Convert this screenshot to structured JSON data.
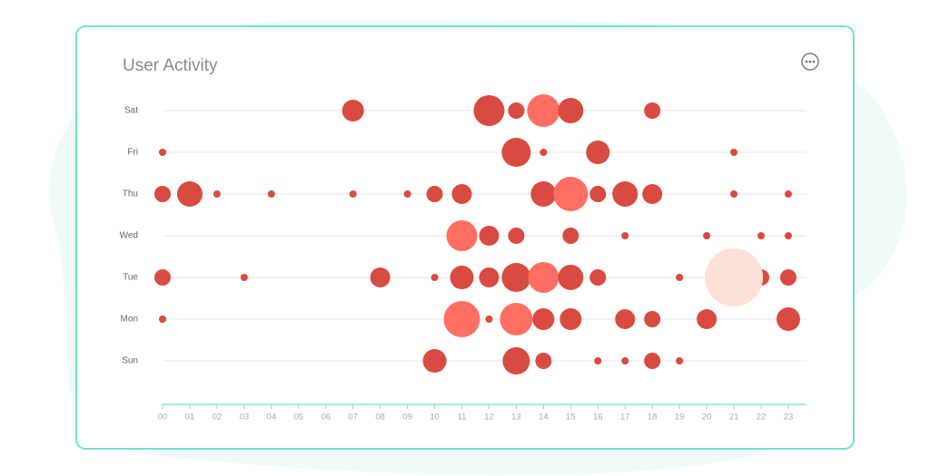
{
  "title": "User Activity",
  "chart_data": {
    "type": "bubble",
    "xlim": [
      0,
      23
    ],
    "xticks": [
      {
        "value": 0,
        "label": "00"
      },
      {
        "value": 1,
        "label": "01"
      },
      {
        "value": 2,
        "label": "02"
      },
      {
        "value": 3,
        "label": "03"
      },
      {
        "value": 4,
        "label": "04"
      },
      {
        "value": 5,
        "label": "05"
      },
      {
        "value": 6,
        "label": "06"
      },
      {
        "value": 7,
        "label": "07"
      },
      {
        "value": 8,
        "label": "08"
      },
      {
        "value": 9,
        "label": "09"
      },
      {
        "value": 10,
        "label": "10"
      },
      {
        "value": 11,
        "label": "11"
      },
      {
        "value": 12,
        "label": "12"
      },
      {
        "value": 13,
        "label": "13"
      },
      {
        "value": 14,
        "label": "14"
      },
      {
        "value": 15,
        "label": "15"
      },
      {
        "value": 16,
        "label": "16"
      },
      {
        "value": 17,
        "label": "17"
      },
      {
        "value": 18,
        "label": "18"
      },
      {
        "value": 19,
        "label": "19"
      },
      {
        "value": 20,
        "label": "20"
      },
      {
        "value": 21,
        "label": "21"
      },
      {
        "value": 22,
        "label": "22"
      },
      {
        "value": 23,
        "label": "23"
      }
    ],
    "grid": true,
    "series": [
      {
        "name": "Sat",
        "x": [
          7,
          12,
          13,
          14,
          15,
          18
        ],
        "sizes": [
          12,
          17,
          9,
          18,
          14,
          9
        ],
        "colors": [
          "#d94a40",
          "#d94a40",
          "#d94a40",
          "#ff6e63",
          "#d94a40",
          "#d94a40"
        ]
      },
      {
        "name": "Fri",
        "x": [
          0,
          13,
          14,
          16,
          21
        ],
        "sizes": [
          4,
          16,
          4,
          13,
          4
        ],
        "colors": [
          "#d94a40",
          "#d94a40",
          "#d94a40",
          "#d94a40",
          "#d94a40"
        ]
      },
      {
        "name": "Thu",
        "x": [
          0,
          1,
          2,
          4,
          7,
          9,
          10,
          11,
          14,
          15,
          16,
          17,
          18,
          21,
          23
        ],
        "sizes": [
          9,
          14,
          4,
          4,
          4,
          4,
          9,
          11,
          14,
          19,
          9,
          14,
          11,
          4,
          4
        ],
        "colors": [
          "#d94a40",
          "#d94a40",
          "#d94a40",
          "#d94a40",
          "#d94a40",
          "#d94a40",
          "#d94a40",
          "#d94a40",
          "#d94a40",
          "#ff6e63",
          "#d94a40",
          "#d94a40",
          "#d94a40",
          "#d94a40",
          "#d94a40"
        ]
      },
      {
        "name": "Wed",
        "x": [
          11,
          12,
          13,
          15,
          17,
          20,
          22,
          23
        ],
        "sizes": [
          17,
          11,
          9,
          9,
          4,
          4,
          4,
          4
        ],
        "colors": [
          "#ff6e63",
          "#d94a40",
          "#d94a40",
          "#d94a40",
          "#d94a40",
          "#d94a40",
          "#d94a40",
          "#d94a40"
        ]
      },
      {
        "name": "Tue",
        "x": [
          0,
          3,
          8,
          10,
          11,
          12,
          13,
          14,
          15,
          16,
          19,
          22,
          21,
          23
        ],
        "sizes": [
          9,
          4,
          11,
          4,
          13,
          11,
          16,
          17,
          14,
          9,
          4,
          9,
          32,
          9
        ],
        "colors": [
          "#d94a40",
          "#d94a40",
          "#d94a40",
          "#d94a40",
          "#d94a40",
          "#d94a40",
          "#d94a40",
          "#ff6e63",
          "#d94a40",
          "#d94a40",
          "#d94a40",
          "#d94a40",
          "#fde0d6",
          "#d94a40"
        ]
      },
      {
        "name": "Mon",
        "x": [
          0,
          11,
          12,
          13,
          14,
          15,
          17,
          18,
          20,
          23
        ],
        "sizes": [
          4,
          20,
          4,
          18,
          12,
          12,
          11,
          9,
          11,
          13
        ],
        "colors": [
          "#d94a40",
          "#ff6e63",
          "#d94a40",
          "#ff6e63",
          "#d94a40",
          "#d94a40",
          "#d94a40",
          "#d94a40",
          "#d94a40",
          "#d94a40"
        ]
      },
      {
        "name": "Sun",
        "x": [
          10,
          13,
          14,
          16,
          17,
          18,
          19
        ],
        "sizes": [
          13,
          15,
          9,
          4,
          4,
          9,
          4
        ],
        "colors": [
          "#d94a40",
          "#d94a40",
          "#d94a40",
          "#d94a40",
          "#d94a40",
          "#d94a40",
          "#d94a40"
        ]
      }
    ]
  }
}
